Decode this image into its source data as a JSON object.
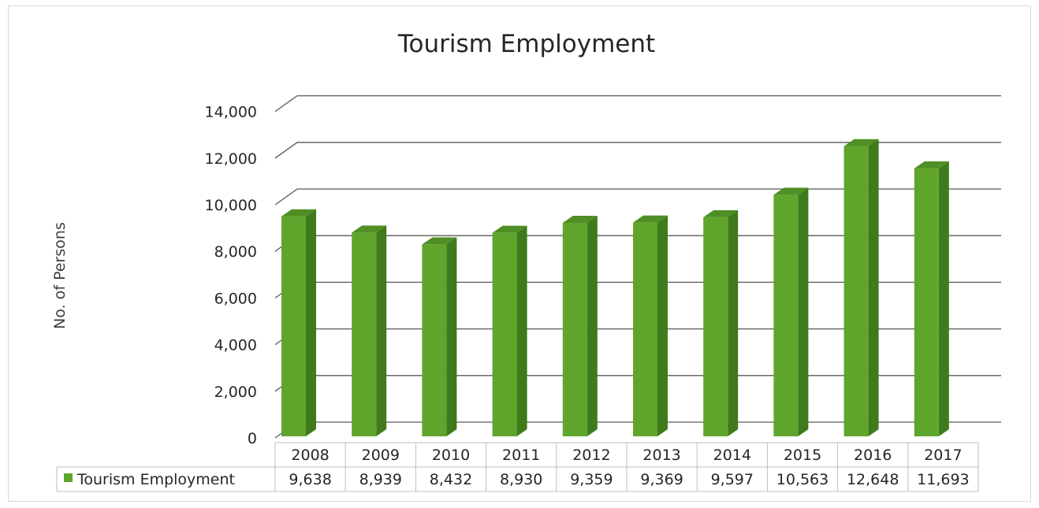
{
  "chart_data": {
    "type": "bar",
    "title": "Tourism Employment",
    "ylabel": "No. of  Persons",
    "xlabel": "",
    "categories": [
      "2008",
      "2009",
      "2010",
      "2011",
      "2012",
      "2013",
      "2014",
      "2015",
      "2016",
      "2017"
    ],
    "series": [
      {
        "name": "Tourism Employment",
        "values": [
          9638,
          8939,
          8432,
          8930,
          9359,
          9369,
          9597,
          10563,
          12648,
          11693
        ],
        "value_labels": [
          "9,638",
          "8,939",
          "8,432",
          "8,930",
          "9,359",
          "9,369",
          "9,597",
          "10,563",
          "12,648",
          "11,693"
        ]
      }
    ],
    "ylim": [
      0,
      14000
    ],
    "yticks": [
      "0",
      "2,000",
      "4,000",
      "6,000",
      "8,000",
      "10,000",
      "12,000",
      "14,000"
    ],
    "grid": true,
    "data_table": true,
    "style": "3d-column",
    "colors": {
      "bar_front": "#5fa52c",
      "bar_side": "#3f7a1b",
      "bar_top": "#4f8f23",
      "grid": "#595959"
    }
  }
}
